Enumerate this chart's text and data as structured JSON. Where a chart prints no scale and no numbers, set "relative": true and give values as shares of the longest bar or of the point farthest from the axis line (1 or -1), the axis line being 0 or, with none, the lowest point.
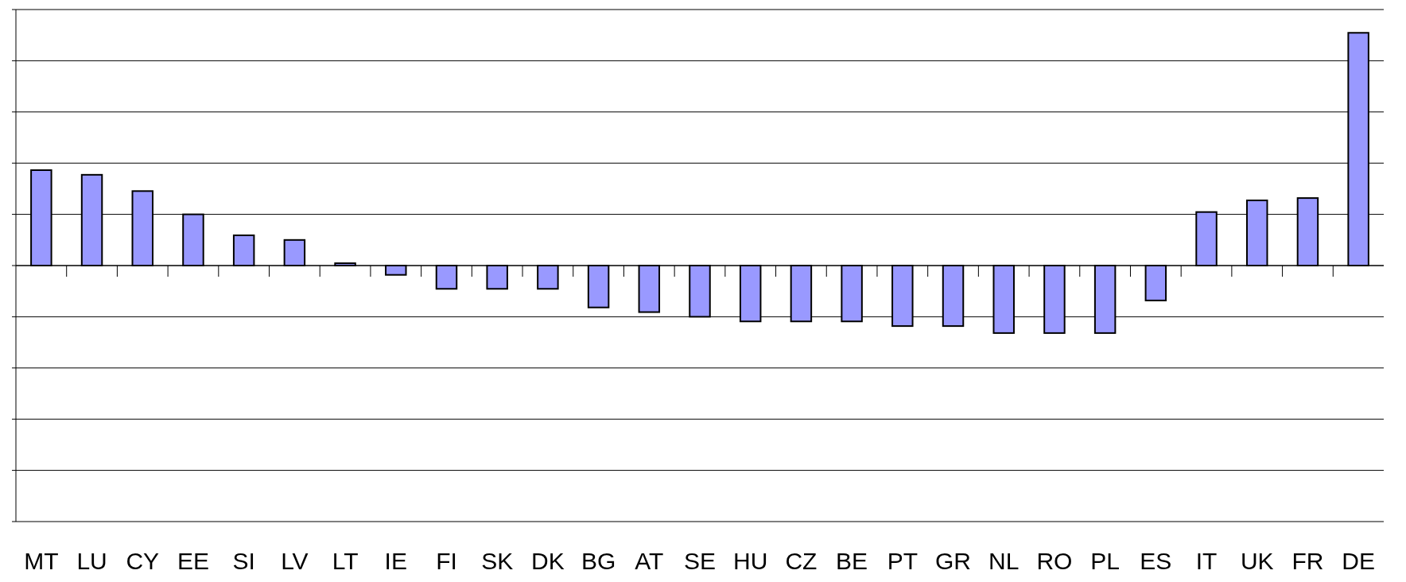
{
  "chart_data": {
    "type": "bar",
    "relative": true,
    "grid": "y",
    "color": "#9999ff",
    "categories": [
      "MT",
      "LU",
      "CY",
      "EE",
      "SI",
      "LV",
      "LT",
      "IE",
      "FI",
      "SK",
      "DK",
      "BG",
      "AT",
      "SE",
      "HU",
      "CZ",
      "BE",
      "PT",
      "GR",
      "NL",
      "RO",
      "PL",
      "ES",
      "IT",
      "UK",
      "FR",
      "DE"
    ],
    "values": [
      0.41,
      0.39,
      0.32,
      0.22,
      0.13,
      0.11,
      0.01,
      -0.04,
      -0.1,
      -0.1,
      -0.1,
      -0.18,
      -0.2,
      -0.22,
      -0.24,
      -0.24,
      -0.24,
      -0.26,
      -0.26,
      -0.29,
      -0.29,
      -0.29,
      -0.15,
      0.23,
      0.28,
      0.29,
      1
    ]
  }
}
